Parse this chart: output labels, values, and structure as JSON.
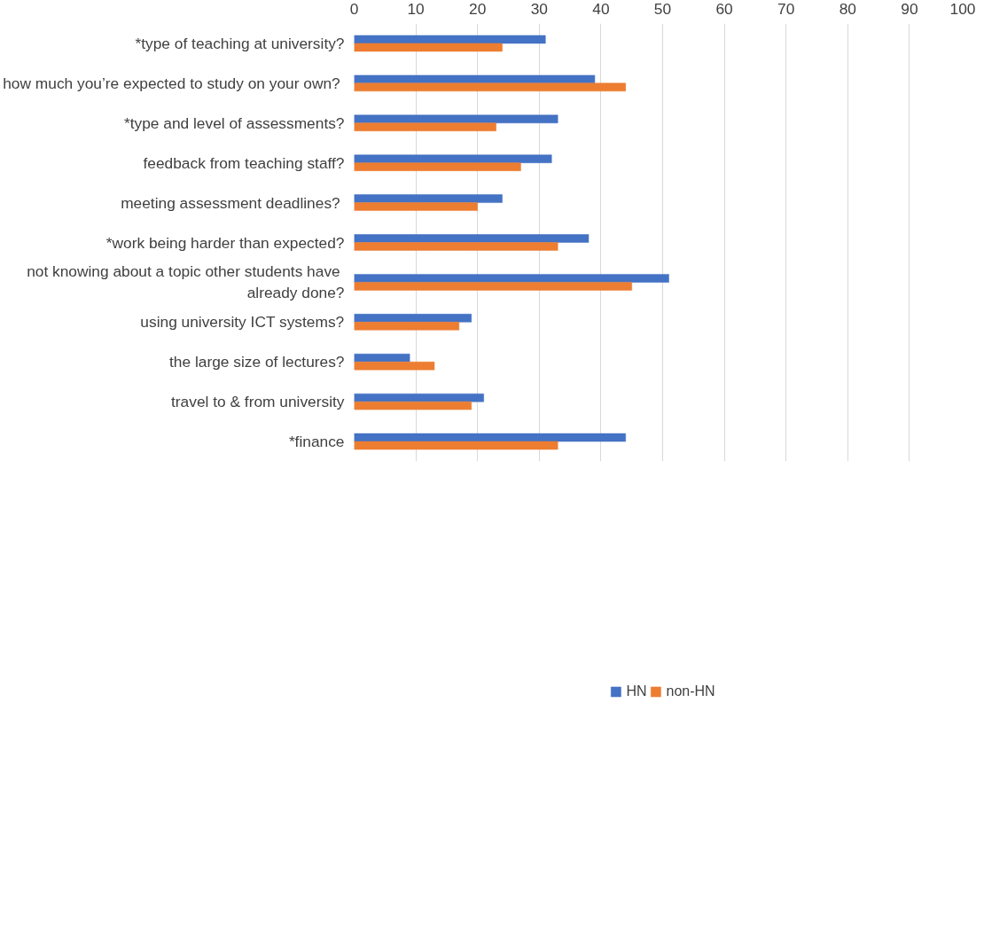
{
  "chart_data": {
    "type": "bar",
    "orientation": "horizontal",
    "categories": [
      "*type of teaching at university?",
      "how much you’re expected  to study on your own?",
      "*type and level of assessments?",
      "feedback from teaching staff?",
      "meeting assessment  deadlines?",
      "*work being harder than expected?",
      "not knowing about a topic  other students have\nalready done?",
      "using university ICT systems?",
      "the large size of lectures?",
      "travel to & from university",
      "*finance"
    ],
    "series": [
      {
        "name": "HN",
        "color": "#4472c4",
        "values": [
          31,
          39,
          33,
          32,
          24,
          38,
          51,
          19,
          9,
          21,
          44
        ]
      },
      {
        "name": "non-HN",
        "color": "#ed7d31",
        "values": [
          24,
          44,
          23,
          27,
          20,
          33,
          45,
          17,
          13,
          19,
          33
        ]
      }
    ],
    "xlim": [
      0,
      100
    ],
    "xticks": [
      0,
      10,
      20,
      30,
      40,
      50,
      60,
      70,
      80,
      90,
      100
    ],
    "grid": "x",
    "legend": "bottom"
  }
}
